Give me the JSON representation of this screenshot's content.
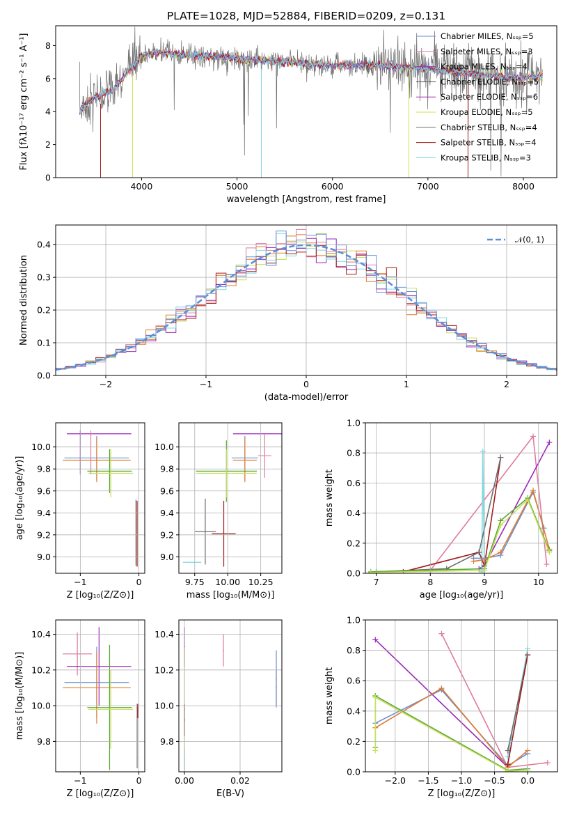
{
  "title": "PLATE=1028, MJD=52884, FIBERID=0209, z=0.131",
  "colors": {
    "chabrier_miles": "#6a8fd6",
    "salpeter_miles": "#e07a9e",
    "kroupa_miles": "#8a3fb8",
    "chabrier_elodie": "#4f4f4f",
    "salpeter_elodie": "#9a26b8",
    "kroupa_elodie": "#c8e05a",
    "chabrier_stelib": "#6e6e6e",
    "salpeter_stelib": "#a01a1a",
    "kroupa_stelib": "#7fd8e0",
    "orange": "#e07a2a",
    "green": "#5aa832",
    "gaussian": "#5b8fd6"
  },
  "chart_data": [
    {
      "id": "spectrum",
      "type": "line",
      "title": "PLATE=1028, MJD=52884, FIBERID=0209, z=0.131",
      "xlabel": "wavelength [Angstrom, rest frame]",
      "ylabel": "Flux [fλ10⁻¹⁷ erg cm⁻² s⁻¹ A⁻¹]",
      "xlim": [
        3100,
        8350
      ],
      "ylim": [
        0,
        9.2
      ],
      "xticks": [
        "4000",
        "5000",
        "6000",
        "7000",
        "8000"
      ],
      "yticks": [
        "0",
        "2",
        "4",
        "6",
        "8"
      ],
      "legend_position": "top-right",
      "legend": [
        "Chabrier MILES, Nₛₛₚ=5",
        "Salpeter MILES, Nₛₛₚ=3",
        "Kroupa MILES, Nₛₛₚ=4",
        "Chabrier ELODIE, Nₛₛₚ=5",
        "Salpeter ELODIE, Nₛₛₚ=6",
        "Kroupa ELODIE, Nₛₛₚ=5",
        "Chabrier STELIB, Nₛₛₚ=4",
        "Salpeter STELIB, Nₛₛₚ=4",
        "Kroupa STELIB, Nₛₛₚ=3"
      ],
      "continuum": [
        [
          3350,
          4.1
        ],
        [
          3500,
          4.8
        ],
        [
          3700,
          5.3
        ],
        [
          3900,
          6.7
        ],
        [
          4000,
          7.4
        ],
        [
          4200,
          7.6
        ],
        [
          4500,
          7.4
        ],
        [
          5000,
          7.2
        ],
        [
          5500,
          7.0
        ],
        [
          6000,
          6.8
        ],
        [
          6500,
          6.8
        ],
        [
          7000,
          6.6
        ],
        [
          7500,
          6.3
        ],
        [
          8000,
          6.0
        ],
        [
          8200,
          6.2
        ]
      ]
    },
    {
      "id": "residuals",
      "type": "line",
      "xlabel": "(data-model)/error",
      "ylabel": "Normed distribution",
      "xlim": [
        -2.5,
        2.5
      ],
      "ylim": [
        0,
        0.46
      ],
      "xticks": [
        "−2",
        "−1",
        "0",
        "1",
        "2"
      ],
      "yticks": [
        "0.0",
        "0.1",
        "0.2",
        "0.3",
        "0.4"
      ],
      "legend": [
        "𝒩(0, 1)"
      ],
      "legend_position": "top-right",
      "bin_width": 0.1
    },
    {
      "id": "age_vs_Z",
      "type": "scatter",
      "xlabel": "Z [log₁₀(Z/Z⊙)]",
      "ylabel": "age  [log₁₀(age/yr)]",
      "xlim": [
        -1.42,
        0.1
      ],
      "ylim": [
        8.85,
        10.22
      ],
      "xticks": [
        "−1",
        "0"
      ],
      "yticks": [
        "9.0",
        "9.2",
        "9.4",
        "9.6",
        "9.8",
        "10.0"
      ],
      "points": [
        {
          "c": "salpeter_elodie",
          "x": -0.68,
          "xe": 0.55,
          "y": 10.12,
          "ye": 0.001
        },
        {
          "c": "chabrier_miles",
          "x": -0.72,
          "xe": 0.55,
          "y": 9.9,
          "ye": 0.2
        },
        {
          "c": "orange",
          "x": -0.72,
          "xe": 0.58,
          "y": 9.88,
          "ye": 0.2
        },
        {
          "c": "kroupa_miles",
          "x": -1.0,
          "xe": 0.001,
          "y": 9.95,
          "ye": 0.2
        },
        {
          "c": "salpeter_miles",
          "x": -0.82,
          "xe": 0.001,
          "y": 9.95,
          "ye": 0.2
        },
        {
          "c": "green",
          "x": -0.5,
          "xe": 0.38,
          "y": 9.78,
          "ye": 0.2
        },
        {
          "c": "kroupa_elodie",
          "x": -0.48,
          "xe": 0.38,
          "y": 9.76,
          "ye": 0.22
        },
        {
          "c": "chabrier_stelib",
          "x": -0.05,
          "xe": 0.001,
          "y": 9.22,
          "ye": 0.3
        },
        {
          "c": "salpeter_stelib",
          "x": -0.03,
          "xe": 0.001,
          "y": 9.21,
          "ye": 0.3
        },
        {
          "c": "kroupa_stelib",
          "x": -0.02,
          "xe": 0.001,
          "y": 8.95,
          "ye": 0.001
        }
      ]
    },
    {
      "id": "age_vs_mass",
      "type": "scatter",
      "xlabel": "mass [log₁₀(M/M⊙)]",
      "ylabel": "",
      "xlim": [
        9.63,
        10.41
      ],
      "ylim": [
        8.85,
        10.22
      ],
      "xticks": [
        "9.75",
        "10.00",
        "10.25"
      ],
      "yticks": [
        "9.0",
        "9.2",
        "9.4",
        "9.6",
        "9.8",
        "10.0"
      ],
      "points": [
        {
          "c": "salpeter_elodie",
          "x": 10.23,
          "xe": 0.19,
          "y": 10.12,
          "ye": 0.001
        },
        {
          "c": "salpeter_miles",
          "x": 10.28,
          "xe": 0.05,
          "y": 9.92,
          "ye": 0.2
        },
        {
          "c": "chabrier_miles",
          "x": 10.13,
          "xe": 0.1,
          "y": 9.9,
          "ye": 0.2
        },
        {
          "c": "orange",
          "x": 10.13,
          "xe": 0.09,
          "y": 9.88,
          "ye": 0.2
        },
        {
          "c": "green",
          "x": 9.99,
          "xe": 0.23,
          "y": 9.78,
          "ye": 0.28
        },
        {
          "c": "kroupa_elodie",
          "x": 9.99,
          "xe": 0.23,
          "y": 9.76,
          "ye": 0.22
        },
        {
          "c": "kroupa_stelib",
          "x": 9.73,
          "xe": 0.07,
          "y": 8.95,
          "ye": 0.001
        },
        {
          "c": "chabrier_stelib",
          "x": 9.83,
          "xe": 0.08,
          "y": 9.23,
          "ye": 0.3
        },
        {
          "c": "salpeter_stelib",
          "x": 9.97,
          "xe": 0.09,
          "y": 9.21,
          "ye": 0.3
        }
      ]
    },
    {
      "id": "massweight_vs_age",
      "type": "line",
      "xlabel": "age  [log₁₀(age/yr)]",
      "ylabel": "mass weight",
      "xlim": [
        6.8,
        10.35
      ],
      "ylim": [
        0,
        1.0
      ],
      "xticks": [
        "7",
        "8",
        "9",
        "10"
      ],
      "yticks": [
        "0.0",
        "0.2",
        "0.4",
        "0.6",
        "0.8",
        "1.0"
      ],
      "series": [
        {
          "c": "salpeter_miles",
          "x": [
            8.0,
            9.9,
            10.15
          ],
          "y": [
            0.02,
            0.91,
            0.06
          ]
        },
        {
          "c": "salpeter_elodie",
          "x": [
            8.9,
            9.0,
            10.2
          ],
          "y": [
            0.03,
            0.05,
            0.87
          ]
        },
        {
          "c": "kroupa_stelib",
          "x": [
            8.95,
            8.97,
            9.0
          ],
          "y": [
            0.01,
            0.81,
            0.02
          ]
        },
        {
          "c": "salpeter_stelib",
          "x": [
            7.5,
            8.9,
            9.0,
            9.3
          ],
          "y": [
            0.01,
            0.14,
            0.05,
            0.77
          ]
        },
        {
          "c": "chabrier_stelib",
          "x": [
            7.0,
            8.3,
            8.9,
            9.3
          ],
          "y": [
            0.01,
            0.03,
            0.14,
            0.77
          ]
        },
        {
          "c": "chabrier_miles",
          "x": [
            8.8,
            9.0,
            9.3,
            9.9,
            10.1
          ],
          "y": [
            0.1,
            0.1,
            0.12,
            0.54,
            0.3
          ]
        },
        {
          "c": "orange",
          "x": [
            8.8,
            9.0,
            9.3,
            9.9,
            10.2
          ],
          "y": [
            0.08,
            0.09,
            0.14,
            0.55,
            0.16
          ]
        },
        {
          "c": "green",
          "x": [
            6.9,
            9.0,
            9.3,
            9.8,
            10.2
          ],
          "y": [
            0.01,
            0.03,
            0.35,
            0.5,
            0.15
          ]
        },
        {
          "c": "kroupa_elodie",
          "x": [
            6.9,
            9.0,
            9.3,
            9.8,
            10.2
          ],
          "y": [
            0.005,
            0.02,
            0.32,
            0.49,
            0.14
          ]
        }
      ]
    },
    {
      "id": "mass_vs_Z",
      "type": "scatter",
      "xlabel": "Z [log₁₀(Z/Z⊙)]",
      "ylabel": "mass [log₁₀(M/M⊙)]",
      "xlim": [
        -1.42,
        0.1
      ],
      "ylim": [
        9.63,
        10.48
      ],
      "xticks": [
        "−1",
        "0"
      ],
      "yticks": [
        "9.8",
        "10.0",
        "10.2",
        "10.4"
      ],
      "points": [
        {
          "c": "salpeter_miles",
          "x": -1.05,
          "xe": 0.25,
          "y": 10.29,
          "ye": 0.12
        },
        {
          "c": "salpeter_elodie",
          "x": -0.68,
          "xe": 0.55,
          "y": 10.22,
          "ye": 0.22
        },
        {
          "c": "chabrier_miles",
          "x": -0.72,
          "xe": 0.55,
          "y": 10.13,
          "ye": 0.2
        },
        {
          "c": "orange",
          "x": -0.72,
          "xe": 0.58,
          "y": 10.1,
          "ye": 0.2
        },
        {
          "c": "green",
          "x": -0.5,
          "xe": 0.38,
          "y": 9.99,
          "ye": 0.35
        },
        {
          "c": "kroupa_elodie",
          "x": -0.48,
          "xe": 0.38,
          "y": 9.98,
          "ye": 0.22
        },
        {
          "c": "chabrier_stelib",
          "x": -0.03,
          "xe": 0.001,
          "y": 9.83,
          "ye": 0.18
        },
        {
          "c": "salpeter_stelib",
          "x": -0.02,
          "xe": 0.001,
          "y": 9.97,
          "ye": 0.04
        },
        {
          "c": "kroupa_stelib",
          "x": -0.01,
          "xe": 0.001,
          "y": 9.71,
          "ye": 0.001
        }
      ]
    },
    {
      "id": "mass_vs_ebv",
      "type": "scatter",
      "xlabel": "E(B-V)",
      "ylabel": "",
      "xlim": [
        -0.002,
        0.035
      ],
      "ylim": [
        9.63,
        10.48
      ],
      "xticks": [
        "0.00",
        "0.02"
      ],
      "yticks": [
        "9.8",
        "10.0",
        "10.2",
        "10.4"
      ],
      "points": [
        {
          "c": "salpeter_elodie",
          "x": 0.0,
          "xe": 0.0002,
          "y": 10.33,
          "ye": 0.11
        },
        {
          "c": "kroupa_elodie",
          "x": 0.0,
          "xe": 0.0002,
          "y": 9.98,
          "ye": 0.35
        },
        {
          "c": "salpeter_stelib",
          "x": 0.0,
          "xe": 0.0002,
          "y": 9.92,
          "ye": 0.09
        },
        {
          "c": "kroupa_stelib",
          "x": 0.0,
          "xe": 0.0002,
          "y": 9.7,
          "ye": 0.06
        },
        {
          "c": "salpeter_miles",
          "x": 0.014,
          "xe": 0.0002,
          "y": 10.31,
          "ye": 0.09
        },
        {
          "c": "orange",
          "x": 0.033,
          "xe": 0.0002,
          "y": 10.1,
          "ye": 0.1
        },
        {
          "c": "chabrier_miles",
          "x": 0.033,
          "xe": 0.0002,
          "y": 10.15,
          "ye": 0.16
        }
      ]
    },
    {
      "id": "massweight_vs_Z",
      "type": "line",
      "xlabel": "Z [log₁₀(Z/Z⊙)]",
      "ylabel": "mass weight",
      "xlim": [
        -2.45,
        0.45
      ],
      "ylim": [
        0,
        1.0
      ],
      "xticks": [
        "−2.0",
        "−1.5",
        "−1.0",
        "−0.5",
        "0.0"
      ],
      "yticks": [
        "0.0",
        "0.2",
        "0.4",
        "0.6",
        "0.8",
        "1.0"
      ],
      "series": [
        {
          "c": "salpeter_miles",
          "x": [
            -1.3,
            -0.3,
            0.3
          ],
          "y": [
            0.91,
            0.03,
            0.06
          ]
        },
        {
          "c": "salpeter_elodie",
          "x": [
            -2.3,
            -0.3
          ],
          "y": [
            0.87,
            0.03
          ]
        },
        {
          "c": "chabrier_miles",
          "x": [
            -2.3,
            -1.3,
            -0.3,
            0.0
          ],
          "y": [
            0.32,
            0.54,
            0.04,
            0.12
          ]
        },
        {
          "c": "orange",
          "x": [
            -2.3,
            -1.3,
            -0.3,
            0.0
          ],
          "y": [
            0.29,
            0.55,
            0.03,
            0.14
          ]
        },
        {
          "c": "green",
          "x": [
            -2.3,
            -2.3,
            -0.3,
            0.0
          ],
          "y": [
            0.16,
            0.5,
            0.01,
            0.02
          ]
        },
        {
          "c": "kroupa_elodie",
          "x": [
            -2.3,
            -2.3,
            -0.3,
            0.0
          ],
          "y": [
            0.14,
            0.49,
            0.005,
            0.01
          ]
        },
        {
          "c": "kroupa_stelib",
          "x": [
            -0.3,
            0.0
          ],
          "y": [
            0.1,
            0.81
          ]
        },
        {
          "c": "chabrier_stelib",
          "x": [
            -0.3,
            0.0
          ],
          "y": [
            0.14,
            0.77
          ]
        },
        {
          "c": "salpeter_stelib",
          "x": [
            -0.3,
            0.0
          ],
          "y": [
            0.05,
            0.77
          ]
        }
      ]
    }
  ]
}
